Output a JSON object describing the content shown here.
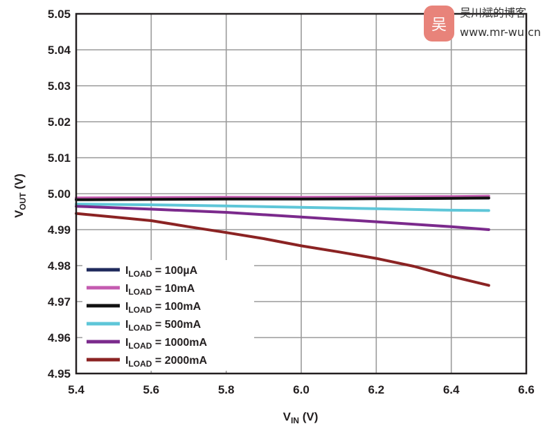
{
  "chart_data": {
    "type": "line",
    "xlabel": {
      "main": "V",
      "sub": "IN",
      "unit": " (V)"
    },
    "ylabel": {
      "main": "V",
      "sub": "OUT",
      "unit": " (V)"
    },
    "xlim": [
      5.4,
      6.6
    ],
    "ylim": [
      4.95,
      5.05
    ],
    "xticks": [
      5.4,
      5.6,
      5.8,
      6.0,
      6.2,
      6.4,
      6.6
    ],
    "xtick_labels": [
      "5.4",
      "5.6",
      "5.8",
      "6.0",
      "6.2",
      "6.4",
      "6.6"
    ],
    "yticks": [
      4.95,
      4.96,
      4.97,
      4.98,
      4.99,
      5.0,
      5.01,
      5.02,
      5.03,
      5.04,
      5.05
    ],
    "ytick_labels": [
      "4.95",
      "4.96",
      "4.97",
      "4.98",
      "4.99",
      "5.00",
      "5.01",
      "5.02",
      "5.03",
      "5.04",
      "5.05"
    ],
    "grid": true,
    "legend_position": "bottom-left",
    "series": [
      {
        "name": "100µA",
        "legend_prefix": "I",
        "legend_sub": "LOAD",
        "legend_rest": " = 100µA",
        "color": "#1f2a5c",
        "x": [
          5.4,
          5.6,
          5.8,
          6.0,
          6.2,
          6.4,
          6.5
        ],
        "y": [
          4.9985,
          4.9985,
          4.9986,
          4.9987,
          4.9988,
          4.9988,
          4.9988
        ]
      },
      {
        "name": "10mA",
        "legend_prefix": "I",
        "legend_sub": "LOAD",
        "legend_rest": " = 10mA",
        "color": "#c45bb0",
        "x": [
          5.4,
          5.6,
          5.8,
          6.0,
          6.2,
          6.4,
          6.5
        ],
        "y": [
          4.9988,
          4.9989,
          4.999,
          4.999,
          4.9991,
          4.9992,
          4.9993
        ]
      },
      {
        "name": "100mA",
        "legend_prefix": "I",
        "legend_sub": "LOAD",
        "legend_rest": " = 100mA",
        "color": "#111111",
        "x": [
          5.4,
          5.6,
          5.8,
          6.0,
          6.2,
          6.4,
          6.5
        ],
        "y": [
          4.9983,
          4.9984,
          4.9985,
          4.9985,
          4.9986,
          4.9987,
          4.9988
        ]
      },
      {
        "name": "500mA",
        "legend_prefix": "I",
        "legend_sub": "LOAD",
        "legend_rest": " = 500mA",
        "color": "#5ec6d8",
        "x": [
          5.4,
          5.6,
          5.8,
          6.0,
          6.2,
          6.4,
          6.5
        ],
        "y": [
          4.9971,
          4.9969,
          4.9966,
          4.9962,
          4.9958,
          4.9954,
          4.9953
        ]
      },
      {
        "name": "1000mA",
        "legend_prefix": "I",
        "legend_sub": "LOAD",
        "legend_rest": " = 1000mA",
        "color": "#7b2a8c",
        "x": [
          5.4,
          5.6,
          5.8,
          6.0,
          6.2,
          6.4,
          6.5
        ],
        "y": [
          4.9965,
          4.9957,
          4.9948,
          4.9935,
          4.9922,
          4.9908,
          4.99
        ]
      },
      {
        "name": "2000mA",
        "legend_prefix": "I",
        "legend_sub": "LOAD",
        "legend_rest": " = 2000mA",
        "color": "#8b2323",
        "x": [
          5.4,
          5.5,
          5.6,
          5.7,
          5.8,
          5.9,
          6.0,
          6.1,
          6.2,
          6.3,
          6.4,
          6.5
        ],
        "y": [
          4.9945,
          4.9935,
          4.9925,
          4.9908,
          4.9892,
          4.9875,
          4.9855,
          4.9838,
          4.982,
          4.9798,
          4.977,
          4.9745
        ]
      }
    ]
  },
  "watermark": {
    "badge_char": "吴",
    "title": "吴川斌的博客",
    "url": "www.mr-wu.cn",
    "badge_color": "#e8837a"
  }
}
